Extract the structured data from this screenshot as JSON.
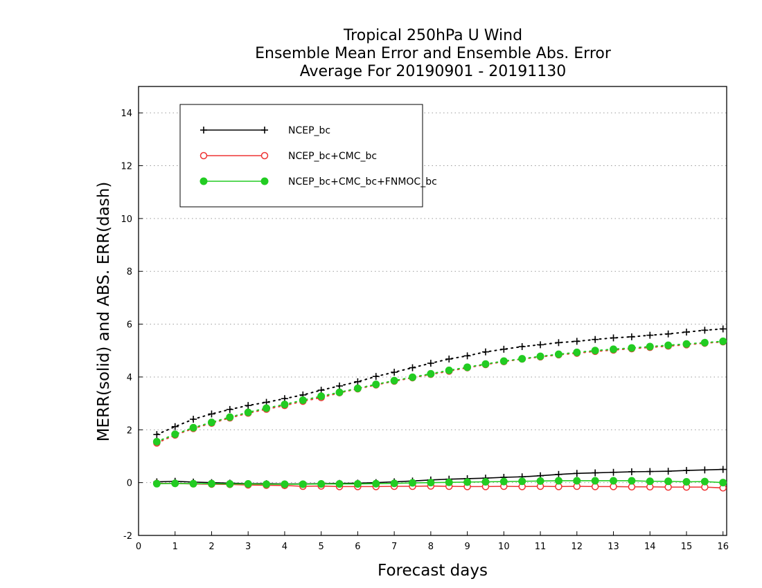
{
  "chart_data": {
    "type": "line",
    "title_lines": [
      "Tropical 250hPa U Wind",
      "Ensemble Mean Error and Ensemble Abs. Error",
      "Average For 20190901 - 20191130"
    ],
    "xlabel": "Forecast days",
    "ylabel": "MERR(solid) and ABS. ERR(dash)",
    "xlim": [
      0,
      16.1
    ],
    "ylim": [
      -2,
      15
    ],
    "x_ticks": [
      "0",
      "1",
      "2",
      "3",
      "4",
      "5",
      "6",
      "7",
      "8",
      "9",
      "10",
      "11",
      "12",
      "13",
      "14",
      "15",
      "16"
    ],
    "y_ticks": [
      "-2",
      "0",
      "2",
      "4",
      "6",
      "8",
      "10",
      "12",
      "14"
    ],
    "grid": "horizontal dotted",
    "legend_position": "top-left",
    "x": [
      0.5,
      1,
      1.5,
      2,
      2.5,
      3,
      3.5,
      4,
      4.5,
      5,
      5.5,
      6,
      6.5,
      7,
      7.5,
      8,
      8.5,
      9,
      9.5,
      10,
      10.5,
      11,
      11.5,
      12,
      12.5,
      13,
      13.5,
      14,
      14.5,
      15,
      15.5,
      16
    ],
    "series": [
      {
        "name": "NCEP_bc",
        "color": "#000000",
        "marker": "plus",
        "merr": [
          0.03,
          0.05,
          0.02,
          0.0,
          -0.02,
          -0.04,
          -0.04,
          -0.05,
          -0.05,
          -0.04,
          -0.03,
          -0.02,
          0.0,
          0.03,
          0.06,
          0.1,
          0.13,
          0.15,
          0.17,
          0.2,
          0.22,
          0.26,
          0.31,
          0.35,
          0.37,
          0.39,
          0.41,
          0.42,
          0.43,
          0.46,
          0.48,
          0.5
        ],
        "abs_err": [
          1.82,
          2.12,
          2.4,
          2.6,
          2.77,
          2.92,
          3.04,
          3.18,
          3.32,
          3.5,
          3.66,
          3.82,
          4.02,
          4.18,
          4.35,
          4.52,
          4.68,
          4.8,
          4.95,
          5.05,
          5.15,
          5.22,
          5.3,
          5.35,
          5.42,
          5.48,
          5.52,
          5.58,
          5.63,
          5.7,
          5.77,
          5.82
        ]
      },
      {
        "name": "NCEP_bc+CMC_bc",
        "color": "#ee3333",
        "marker": "open-circle",
        "merr": [
          -0.03,
          -0.03,
          -0.05,
          -0.06,
          -0.07,
          -0.09,
          -0.1,
          -0.11,
          -0.14,
          -0.13,
          -0.15,
          -0.15,
          -0.15,
          -0.14,
          -0.14,
          -0.13,
          -0.14,
          -0.15,
          -0.15,
          -0.14,
          -0.15,
          -0.14,
          -0.15,
          -0.14,
          -0.15,
          -0.15,
          -0.16,
          -0.16,
          -0.17,
          -0.17,
          -0.17,
          -0.2
        ],
        "abs_err": [
          1.5,
          1.8,
          2.05,
          2.25,
          2.45,
          2.63,
          2.78,
          2.92,
          3.08,
          3.22,
          3.4,
          3.55,
          3.7,
          3.84,
          3.97,
          4.1,
          4.22,
          4.35,
          4.47,
          4.58,
          4.68,
          4.76,
          4.84,
          4.9,
          4.97,
          5.02,
          5.07,
          5.12,
          5.17,
          5.22,
          5.28,
          5.33
        ]
      },
      {
        "name": "NCEP_bc+CMC_bc+FNMOC_bc",
        "color": "#22cc22",
        "marker": "filled-circle",
        "merr": [
          -0.04,
          -0.03,
          -0.04,
          -0.04,
          -0.05,
          -0.05,
          -0.06,
          -0.06,
          -0.06,
          -0.05,
          -0.05,
          -0.05,
          -0.04,
          -0.03,
          -0.01,
          0.0,
          0.01,
          0.02,
          0.03,
          0.04,
          0.05,
          0.06,
          0.07,
          0.07,
          0.07,
          0.07,
          0.07,
          0.05,
          0.05,
          0.03,
          0.04,
          0.0
        ],
        "abs_err": [
          1.55,
          1.83,
          2.08,
          2.28,
          2.48,
          2.66,
          2.82,
          2.96,
          3.12,
          3.27,
          3.42,
          3.57,
          3.72,
          3.86,
          3.99,
          4.12,
          4.25,
          4.37,
          4.49,
          4.6,
          4.69,
          4.78,
          4.86,
          4.93,
          5.0,
          5.05,
          5.1,
          5.15,
          5.2,
          5.25,
          5.3,
          5.35
        ]
      }
    ]
  }
}
